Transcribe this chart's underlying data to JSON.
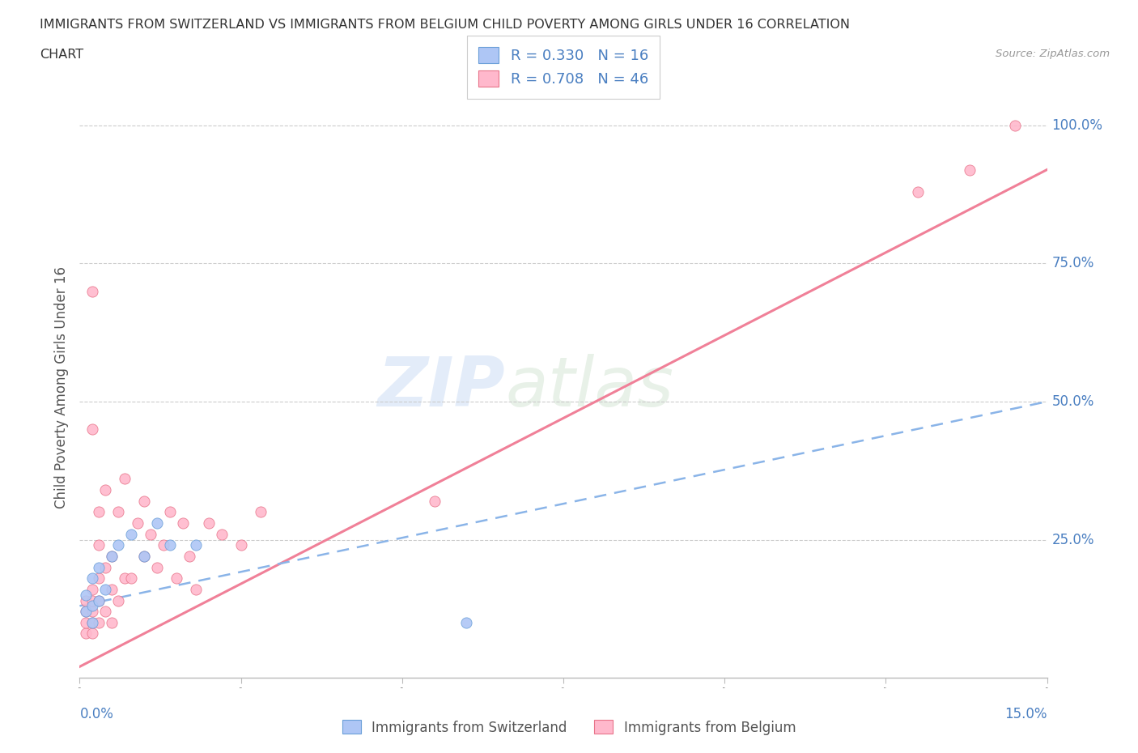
{
  "title_line1": "IMMIGRANTS FROM SWITZERLAND VS IMMIGRANTS FROM BELGIUM CHILD POVERTY AMONG GIRLS UNDER 16 CORRELATION",
  "title_line2": "CHART",
  "source_text": "Source: ZipAtlas.com",
  "ylabel_label": "Child Poverty Among Girls Under 16",
  "watermark_part1": "ZIP",
  "watermark_part2": "atlas",
  "legend_r_switzerland": "R = 0.330",
  "legend_n_switzerland": "N = 16",
  "legend_r_belgium": "R = 0.708",
  "legend_n_belgium": "N = 46",
  "color_switzerland_fill": "#aec6f5",
  "color_switzerland_edge": "#6a9fd8",
  "color_belgium_fill": "#ffb8cc",
  "color_belgium_edge": "#e8748a",
  "color_trendline_switzerland": "#8ab4e8",
  "color_trendline_belgium": "#f08098",
  "color_axis_labels": "#4a7fc1",
  "color_title": "#333333",
  "color_grid": "#cccccc",
  "xlim": [
    0.0,
    0.15
  ],
  "ylim": [
    0.0,
    1.05
  ],
  "xtick_positions": [
    0.0,
    0.025,
    0.05,
    0.075,
    0.1,
    0.125,
    0.15
  ],
  "ytick_positions": [
    0.25,
    0.5,
    0.75,
    1.0
  ],
  "switzerland_x": [
    0.001,
    0.001,
    0.002,
    0.002,
    0.002,
    0.003,
    0.003,
    0.004,
    0.005,
    0.006,
    0.008,
    0.01,
    0.012,
    0.014,
    0.018,
    0.06
  ],
  "switzerland_y": [
    0.12,
    0.15,
    0.1,
    0.13,
    0.18,
    0.14,
    0.2,
    0.16,
    0.22,
    0.24,
    0.26,
    0.22,
    0.28,
    0.24,
    0.24,
    0.1
  ],
  "belgium_x": [
    0.001,
    0.001,
    0.001,
    0.001,
    0.002,
    0.002,
    0.002,
    0.002,
    0.002,
    0.002,
    0.002,
    0.003,
    0.003,
    0.003,
    0.003,
    0.003,
    0.004,
    0.004,
    0.004,
    0.005,
    0.005,
    0.005,
    0.006,
    0.006,
    0.007,
    0.007,
    0.008,
    0.009,
    0.01,
    0.01,
    0.011,
    0.012,
    0.013,
    0.014,
    0.015,
    0.016,
    0.017,
    0.018,
    0.02,
    0.022,
    0.025,
    0.028,
    0.055,
    0.13,
    0.138,
    0.145
  ],
  "belgium_y": [
    0.08,
    0.1,
    0.12,
    0.14,
    0.08,
    0.1,
    0.12,
    0.14,
    0.16,
    0.45,
    0.7,
    0.1,
    0.14,
    0.18,
    0.24,
    0.3,
    0.12,
    0.2,
    0.34,
    0.1,
    0.16,
    0.22,
    0.14,
    0.3,
    0.18,
    0.36,
    0.18,
    0.28,
    0.22,
    0.32,
    0.26,
    0.2,
    0.24,
    0.3,
    0.18,
    0.28,
    0.22,
    0.16,
    0.28,
    0.26,
    0.24,
    0.3,
    0.32,
    0.88,
    0.92,
    1.0
  ],
  "sw_trend_x0": 0.0,
  "sw_trend_x1": 0.15,
  "sw_trend_y0": 0.13,
  "sw_trend_y1": 0.5,
  "be_trend_x0": 0.0,
  "be_trend_x1": 0.15,
  "be_trend_y0": 0.02,
  "be_trend_y1": 0.92
}
